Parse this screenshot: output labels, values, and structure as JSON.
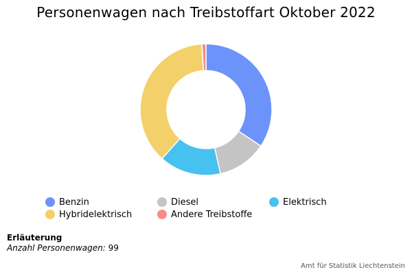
{
  "chart_data": {
    "type": "pie",
    "title": "Personenwagen nach Treibstoffart Oktober 2022",
    "categories": [
      "Benzin",
      "Diesel",
      "Elektrisch",
      "Hybridelektrisch",
      "Andere Treibstoffe"
    ],
    "values": [
      34,
      12,
      15,
      37,
      1
    ],
    "colors": [
      "#6B93FA",
      "#C4C4C4",
      "#47C1EF",
      "#F4D06B",
      "#F48D8A"
    ],
    "legend_position": "bottom"
  },
  "legend": {
    "items": [
      {
        "label": "Benzin",
        "color": "#6B93FA"
      },
      {
        "label": "Diesel",
        "color": "#C4C4C4"
      },
      {
        "label": "Elektrisch",
        "color": "#47C1EF"
      },
      {
        "label": "Hybridelektrisch",
        "color": "#F4D06B"
      },
      {
        "label": "Andere Treibstoffe",
        "color": "#F48D8A"
      }
    ]
  },
  "notes": {
    "heading": "Erläuterung",
    "label": "Anzahl Personenwagen:",
    "value": "99"
  },
  "source": "Amt für Statistik Liechtenstein"
}
